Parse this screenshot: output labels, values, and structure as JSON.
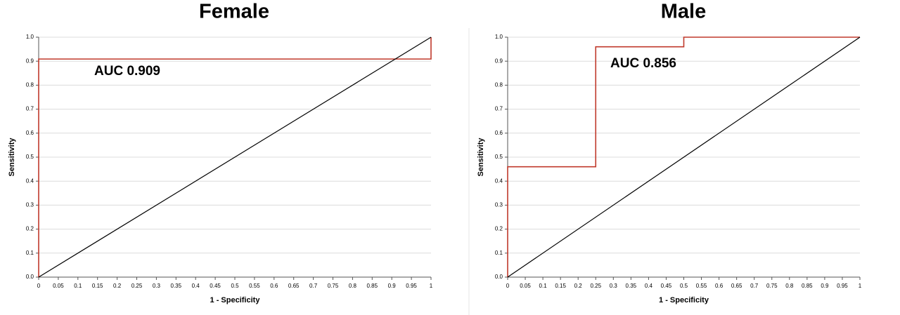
{
  "chart_data": [
    {
      "type": "line",
      "title": "Female",
      "xlabel": "1 - Specificity",
      "ylabel": "Sensitivity",
      "annotation": "AUC 0.909",
      "series": [
        {
          "color": "#c0392b",
          "x": [
            0,
            0,
            1,
            1
          ],
          "values": [
            0,
            0.909,
            0.909,
            1
          ]
        },
        {
          "color": "#000000",
          "x": [
            0,
            1
          ],
          "values": [
            0,
            1
          ]
        }
      ],
      "xlim": [
        0,
        1
      ],
      "ylim": [
        0,
        1
      ],
      "xticks": [
        0,
        0.05,
        0.1,
        0.15,
        0.2,
        0.25,
        0.3,
        0.35,
        0.4,
        0.45,
        0.5,
        0.55,
        0.6,
        0.65,
        0.7,
        0.75,
        0.8,
        0.85,
        0.9,
        0.95,
        1
      ],
      "yticks": [
        {
          "value": 0,
          "label": "0.0"
        },
        0.1,
        0.2,
        0.3,
        0.4,
        0.5,
        0.6,
        0.7,
        0.8,
        0.9,
        {
          "value": 1,
          "label": "1.0"
        }
      ],
      "grid": true
    },
    {
      "type": "line",
      "title": "Male",
      "xlabel": "1 - Specificity",
      "ylabel": "Sensitivity",
      "annotation": "AUC 0.856",
      "series": [
        {
          "color": "#c0392b",
          "x": [
            0,
            0,
            0.25,
            0.25,
            0.5,
            0.5,
            1
          ],
          "values": [
            0,
            0.46,
            0.46,
            0.96,
            0.96,
            1,
            1
          ]
        },
        {
          "color": "#000000",
          "x": [
            0,
            1
          ],
          "values": [
            0,
            1
          ]
        }
      ],
      "xlim": [
        0,
        1
      ],
      "ylim": [
        0,
        1
      ],
      "xticks": [
        0,
        0.05,
        0.1,
        0.15,
        0.2,
        0.25,
        0.3,
        0.35,
        0.4,
        0.45,
        0.5,
        0.55,
        0.6,
        0.65,
        0.7,
        0.75,
        0.8,
        0.85,
        0.9,
        0.95,
        1
      ],
      "yticks": [
        {
          "value": 0,
          "label": "0.0"
        },
        0.1,
        0.2,
        0.3,
        0.4,
        0.5,
        0.6,
        0.7,
        0.8,
        0.9,
        {
          "value": 1,
          "label": "1.0"
        }
      ],
      "grid": true
    }
  ]
}
